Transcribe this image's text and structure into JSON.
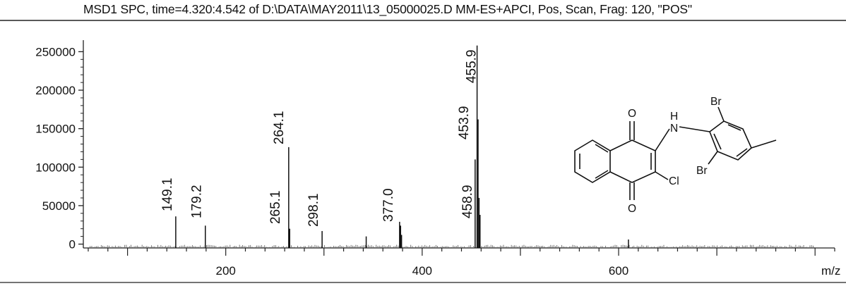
{
  "header": {
    "title": "MSD1 SPC, time=4.320:4.542 of D:\\DATA\\MAY2011\\13_05000025.D    MM-ES+APCI, Pos, Scan, Frag: 120, \"POS\""
  },
  "chart_data": {
    "type": "bar",
    "title": "MSD1 SPC, time=4.320:4.542 of D:\\DATA\\MAY2011\\13_05000025.D    MM-ES+APCI, Pos, Scan, Frag: 120, \"POS\"",
    "xlabel": "m/z",
    "ylabel": "",
    "xlim": [
      55,
      820
    ],
    "ylim": [
      -5000,
      265000
    ],
    "x_ticks": [
      200,
      400,
      600
    ],
    "y_ticks": [
      0,
      50000,
      100000,
      150000,
      200000,
      250000
    ],
    "grid": false,
    "series": [
      {
        "x": [
          149.1,
          179.2,
          264.1,
          265.1,
          298.1,
          343.0,
          377.0,
          378.0,
          379.0,
          453.9,
          455.9,
          456.9,
          457.9,
          458.9,
          610.0
        ],
        "values": [
          36000,
          24000,
          126000,
          20000,
          17000,
          10000,
          29000,
          24000,
          12000,
          110000,
          258000,
          162000,
          60000,
          38000,
          6000
        ]
      }
    ],
    "peak_labels": [
      {
        "x": 149.1,
        "text": "149.1"
      },
      {
        "x": 179.2,
        "text": "179.2"
      },
      {
        "x": 264.1,
        "text": "264.1"
      },
      {
        "x": 265.1,
        "text": "265.1"
      },
      {
        "x": 298.1,
        "text": "298.1"
      },
      {
        "x": 377.0,
        "text": "377.0"
      },
      {
        "x": 453.9,
        "text": "453.9"
      },
      {
        "x": 455.9,
        "text": "455.9"
      },
      {
        "x": 458.9,
        "text": "458.9"
      }
    ],
    "structure_labels": [
      "O",
      "O",
      "H",
      "N",
      "Br",
      "Br",
      "Cl"
    ]
  }
}
